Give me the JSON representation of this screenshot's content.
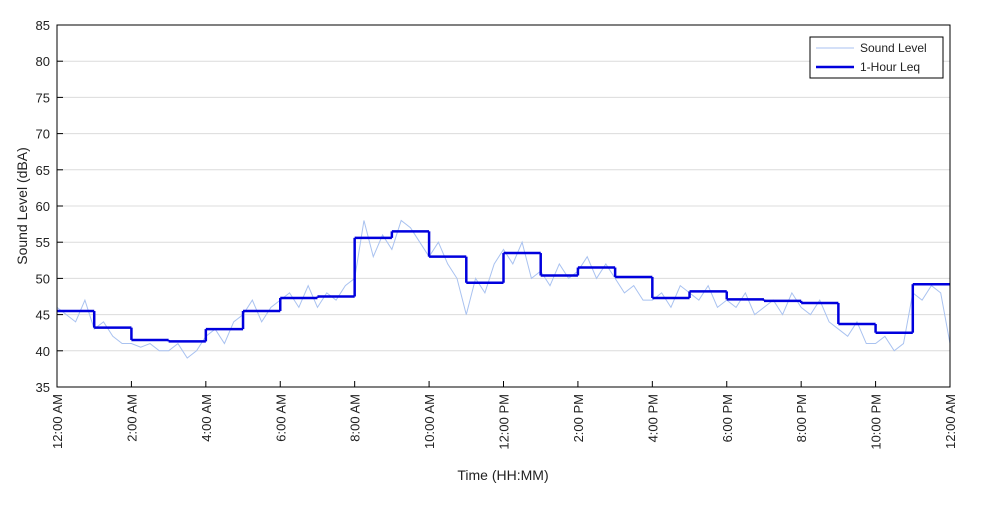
{
  "chart_data": {
    "type": "line",
    "xlabel": "Time (HH:MM)",
    "ylabel": "Sound Level (dBA)",
    "xlim": [
      0,
      24
    ],
    "ylim": [
      35,
      85
    ],
    "xticks": [
      {
        "value": 0,
        "label": "12:00 AM"
      },
      {
        "value": 2,
        "label": "2:00 AM"
      },
      {
        "value": 4,
        "label": "4:00 AM"
      },
      {
        "value": 6,
        "label": "6:00 AM"
      },
      {
        "value": 8,
        "label": "8:00 AM"
      },
      {
        "value": 10,
        "label": "10:00 AM"
      },
      {
        "value": 12,
        "label": "12:00 PM"
      },
      {
        "value": 14,
        "label": "2:00 PM"
      },
      {
        "value": 16,
        "label": "4:00 PM"
      },
      {
        "value": 18,
        "label": "6:00 PM"
      },
      {
        "value": 20,
        "label": "8:00 PM"
      },
      {
        "value": 22,
        "label": "10:00 PM"
      },
      {
        "value": 24,
        "label": "12:00 AM"
      }
    ],
    "yticks": [
      35,
      40,
      45,
      50,
      55,
      60,
      65,
      70,
      75,
      80,
      85
    ],
    "grid": true,
    "legend": "upper right",
    "series": [
      {
        "name": "Sound Level",
        "color": "#a9c2f0",
        "step": false,
        "x": [
          0,
          0.25,
          0.5,
          0.75,
          1,
          1.25,
          1.5,
          1.75,
          2,
          2.25,
          2.5,
          2.75,
          3,
          3.25,
          3.5,
          3.75,
          4,
          4.25,
          4.5,
          4.75,
          5,
          5.25,
          5.5,
          5.75,
          6,
          6.25,
          6.5,
          6.75,
          7,
          7.25,
          7.5,
          7.75,
          8,
          8.25,
          8.5,
          8.75,
          9,
          9.25,
          9.5,
          9.75,
          10,
          10.25,
          10.5,
          10.75,
          11,
          11.25,
          11.5,
          11.75,
          12,
          12.25,
          12.5,
          12.75,
          13,
          13.25,
          13.5,
          13.75,
          14,
          14.25,
          14.5,
          14.75,
          15,
          15.25,
          15.5,
          15.75,
          16,
          16.25,
          16.5,
          16.75,
          17,
          17.25,
          17.5,
          17.75,
          18,
          18.25,
          18.5,
          18.75,
          19,
          19.25,
          19.5,
          19.75,
          20,
          20.25,
          20.5,
          20.75,
          21,
          21.25,
          21.5,
          21.75,
          22,
          22.25,
          22.5,
          22.75,
          23,
          23.25,
          23.5,
          23.75,
          24
        ],
        "values": [
          46,
          45,
          44,
          47,
          43,
          44,
          42,
          41,
          41,
          40.5,
          41,
          40,
          40,
          41,
          39,
          40,
          42,
          43,
          41,
          44,
          45,
          47,
          44,
          46,
          47,
          48,
          46,
          49,
          46,
          48,
          47,
          49,
          50,
          58,
          53,
          56,
          54,
          58,
          57,
          55,
          53,
          55,
          52,
          50,
          45,
          50,
          48,
          52,
          54,
          52,
          55,
          50,
          51,
          49,
          52,
          50,
          51,
          53,
          50,
          52,
          50,
          48,
          49,
          47,
          47,
          48,
          46,
          49,
          48,
          47,
          49,
          46,
          47,
          46,
          48,
          45,
          46,
          47,
          45,
          48,
          46,
          45,
          47,
          44,
          43,
          42,
          44,
          41,
          41,
          42,
          40,
          41,
          48,
          47,
          49,
          48,
          41
        ]
      },
      {
        "name": "1-Hour Leq",
        "color": "#0000dd",
        "step": true,
        "x": [
          0,
          1,
          2,
          3,
          4,
          5,
          6,
          7,
          8,
          9,
          10,
          11,
          12,
          13,
          14,
          15,
          16,
          17,
          18,
          19,
          20,
          21,
          22,
          23
        ],
        "values": [
          45.5,
          43.2,
          41.5,
          41.3,
          43.0,
          45.5,
          47.3,
          47.5,
          55.6,
          56.5,
          53.0,
          49.4,
          53.5,
          50.4,
          51.5,
          50.2,
          47.3,
          48.2,
          47.1,
          46.9,
          46.6,
          43.7,
          42.5,
          49.2
        ]
      }
    ]
  }
}
